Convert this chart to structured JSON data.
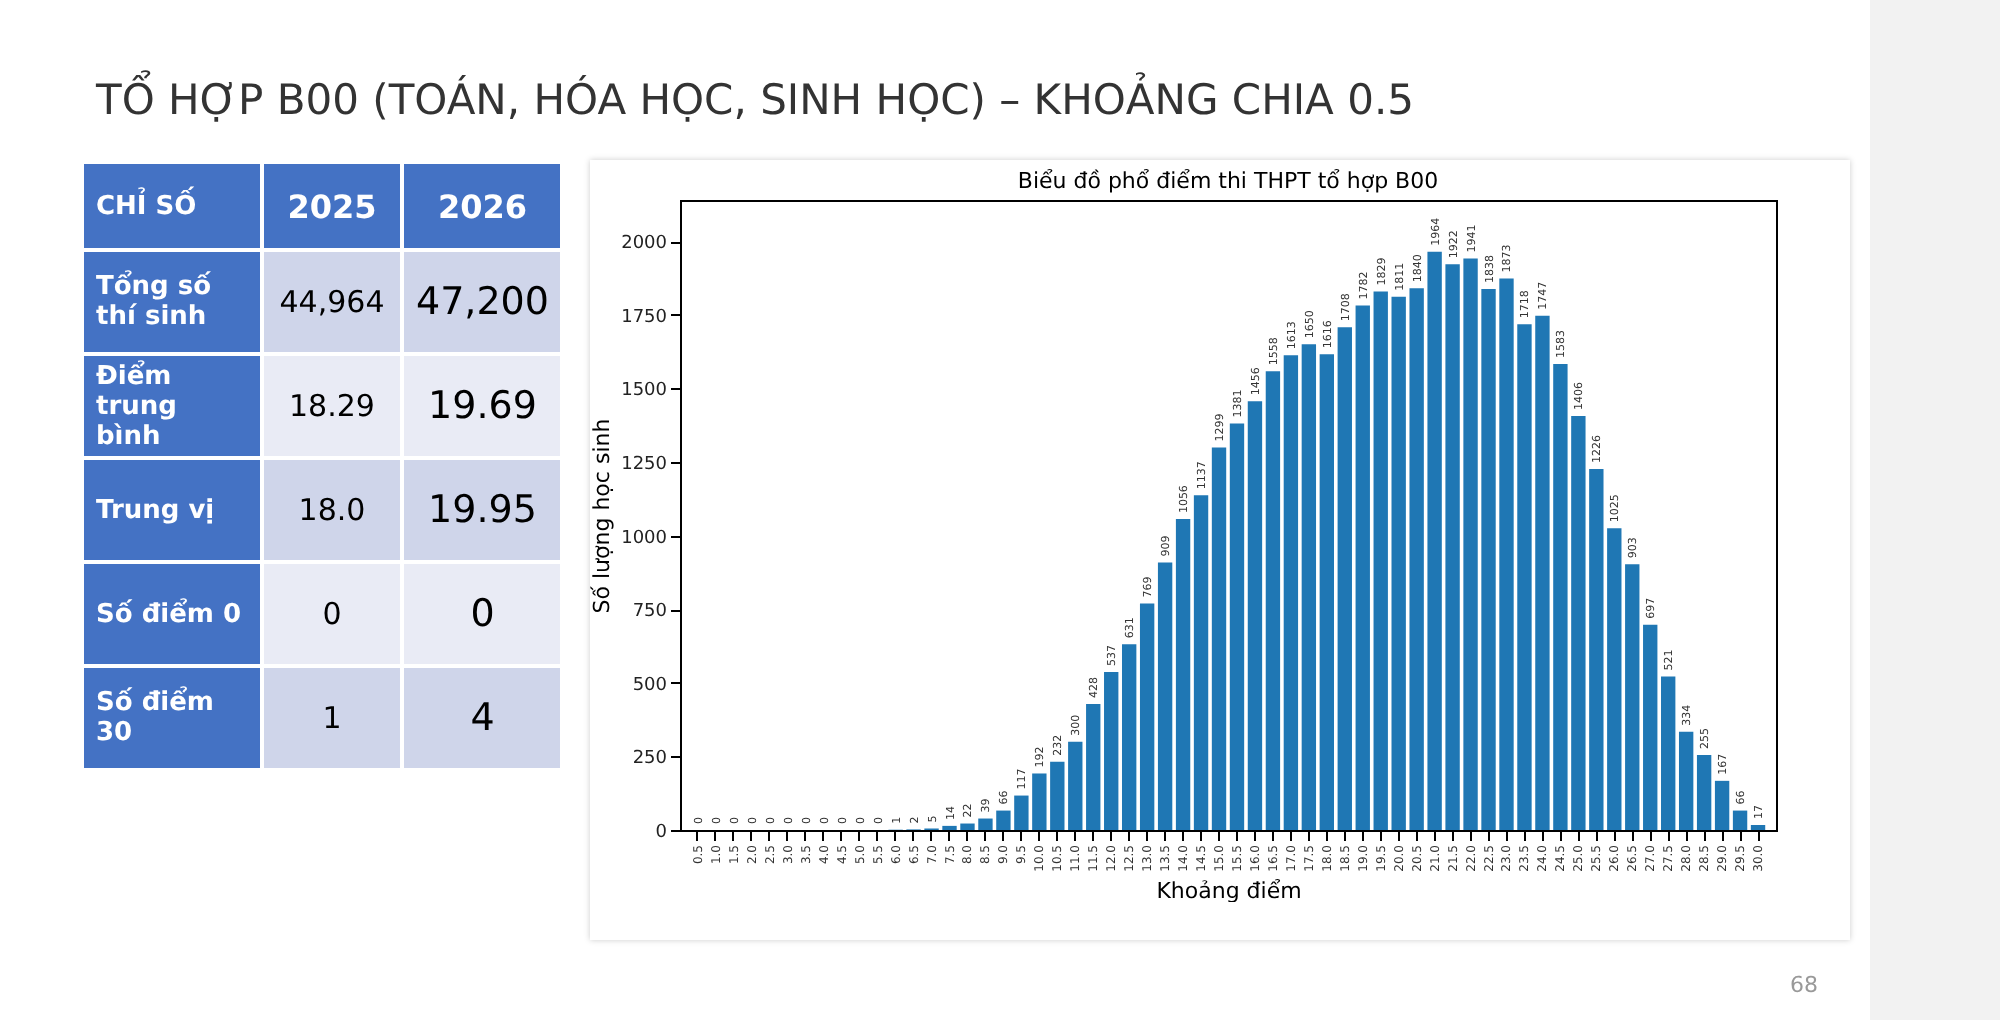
{
  "chart_data": [
    {
      "type": "other",
      "title": "TỔ HỢP B00 (TOÁN, HÓA HỌC, SINH HỌC) – KHOẢNG CHIA 0.5",
      "ylabel": "CHỈ SỐ",
      "categories": [
        "2025",
        "2026"
      ],
      "y_categories": [
        "Tổng số thí sinh",
        "Điểm trung bình",
        "Trung vị",
        "Số điểm 0",
        "Số điểm 30"
      ],
      "cell_labels": [
        [
          "44,964",
          "47,200"
        ],
        [
          "18.29",
          "19.69"
        ],
        [
          "18.0",
          "19.95"
        ],
        [
          "0",
          "0"
        ],
        [
          "1",
          "4"
        ]
      ],
      "annotations": [
        "68"
      ]
    },
    {
      "type": "bar",
      "title": "Biểu đồ phổ điểm thi THPT tổ hợp B00",
      "xlabel": "Khoảng điểm",
      "ylabel": "Số lượng học sinh",
      "color": "#1f77b4",
      "categories": [
        "0.5",
        "1.0",
        "1.5",
        "2.0",
        "2.5",
        "3.0",
        "3.5",
        "4.0",
        "4.5",
        "5.0",
        "5.5",
        "6.0",
        "6.5",
        "7.0",
        "7.5",
        "8.0",
        "8.5",
        "9.0",
        "9.5",
        "10.0",
        "10.5",
        "11.0",
        "11.5",
        "12.0",
        "12.5",
        "13.0",
        "13.5",
        "14.0",
        "14.5",
        "15.0",
        "15.5",
        "16.0",
        "16.5",
        "17.0",
        "17.5",
        "18.0",
        "18.5",
        "19.0",
        "19.5",
        "20.0",
        "20.5",
        "21.0",
        "21.5",
        "22.0",
        "22.5",
        "23.0",
        "23.5",
        "24.0",
        "24.5",
        "25.0",
        "25.5",
        "26.0",
        "26.5",
        "27.0",
        "27.5",
        "28.0",
        "28.5",
        "29.0",
        "29.5",
        "30.0"
      ],
      "values": [
        0,
        0,
        0,
        0,
        0,
        0,
        0,
        0,
        0,
        0,
        0,
        1,
        2,
        5,
        14,
        22,
        39,
        66,
        117,
        192,
        232,
        300,
        428,
        537,
        631,
        769,
        909,
        1056,
        1137,
        1299,
        1381,
        1456,
        1558,
        1613,
        1650,
        1616,
        1708,
        1782,
        1829,
        1811,
        1840,
        1964,
        1922,
        1941,
        1838,
        1873,
        1718,
        1747,
        1583,
        1406,
        1226,
        1025,
        903,
        697,
        521,
        334,
        255,
        167,
        66,
        17
      ],
      "ylim": [
        0,
        2140
      ],
      "yticks": [
        0,
        250,
        500,
        750,
        1000,
        1250,
        1500,
        1750,
        2000
      ],
      "data_labels": true,
      "grid": false
    }
  ]
}
